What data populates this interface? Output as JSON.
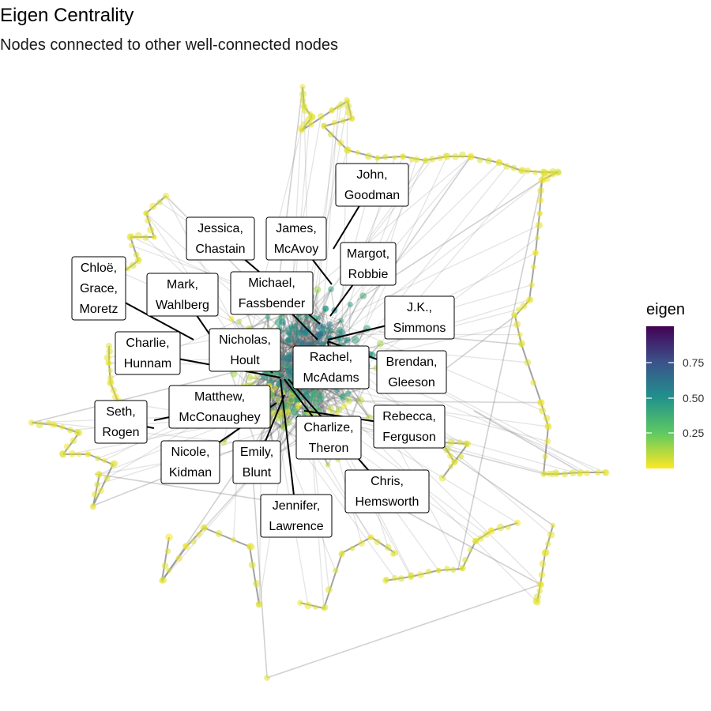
{
  "title": "Eigen Centrality",
  "subtitle": "Nodes connected to other well-connected nodes",
  "legend": {
    "title": "eigen",
    "ticks": [
      "0.75",
      "0.50",
      "0.25"
    ],
    "colors": [
      "#440154",
      "#3b528b",
      "#21918c",
      "#5ec962",
      "#fde725"
    ]
  },
  "colors": {
    "node": "#f2e22b",
    "edge": "#7a7a7a",
    "edge_dark": "#2b2b2b"
  },
  "labels": [
    {
      "id": "john-goodman",
      "lines": [
        "John,",
        "Goodman"
      ]
    },
    {
      "id": "jessica-chastain",
      "lines": [
        "Jessica,",
        "Chastain"
      ]
    },
    {
      "id": "james-mcavoy",
      "lines": [
        "James,",
        "McAvoy"
      ]
    },
    {
      "id": "margot-robbie",
      "lines": [
        "Margot,",
        "Robbie"
      ]
    },
    {
      "id": "chloe-grace-moretz",
      "lines": [
        "Chloë,",
        "Grace,",
        "Moretz"
      ]
    },
    {
      "id": "mark-wahlberg",
      "lines": [
        "Mark,",
        "Wahlberg"
      ]
    },
    {
      "id": "michael-fassbender",
      "lines": [
        "Michael,",
        "Fassbender"
      ]
    },
    {
      "id": "jk-simmons",
      "lines": [
        "J.K.,",
        "Simmons"
      ]
    },
    {
      "id": "charlie-hunnam",
      "lines": [
        "Charlie,",
        "Hunnam"
      ]
    },
    {
      "id": "nicholas-hoult",
      "lines": [
        "Nicholas,",
        "Hoult"
      ]
    },
    {
      "id": "rachel-mcadams",
      "lines": [
        "Rachel,",
        "McAdams"
      ]
    },
    {
      "id": "brendan-gleeson",
      "lines": [
        "Brendan,",
        "Gleeson"
      ]
    },
    {
      "id": "matthew-mcconaughey",
      "lines": [
        "Matthew,",
        "McConaughey"
      ]
    },
    {
      "id": "seth-rogen",
      "lines": [
        "Seth,",
        "Rogen"
      ]
    },
    {
      "id": "rebecca-ferguson",
      "lines": [
        "Rebecca,",
        "Ferguson"
      ]
    },
    {
      "id": "charlize-theron",
      "lines": [
        "Charlize,",
        "Theron"
      ]
    },
    {
      "id": "nicole-kidman",
      "lines": [
        "Nicole,",
        "Kidman"
      ]
    },
    {
      "id": "emily-blunt",
      "lines": [
        "Emily,",
        "Blunt"
      ]
    },
    {
      "id": "chris-hemsworth",
      "lines": [
        "Chris,",
        "Hemsworth"
      ]
    },
    {
      "id": "jennifer-lawrence",
      "lines": [
        "Jennifer,",
        "Lawrence"
      ]
    }
  ]
}
